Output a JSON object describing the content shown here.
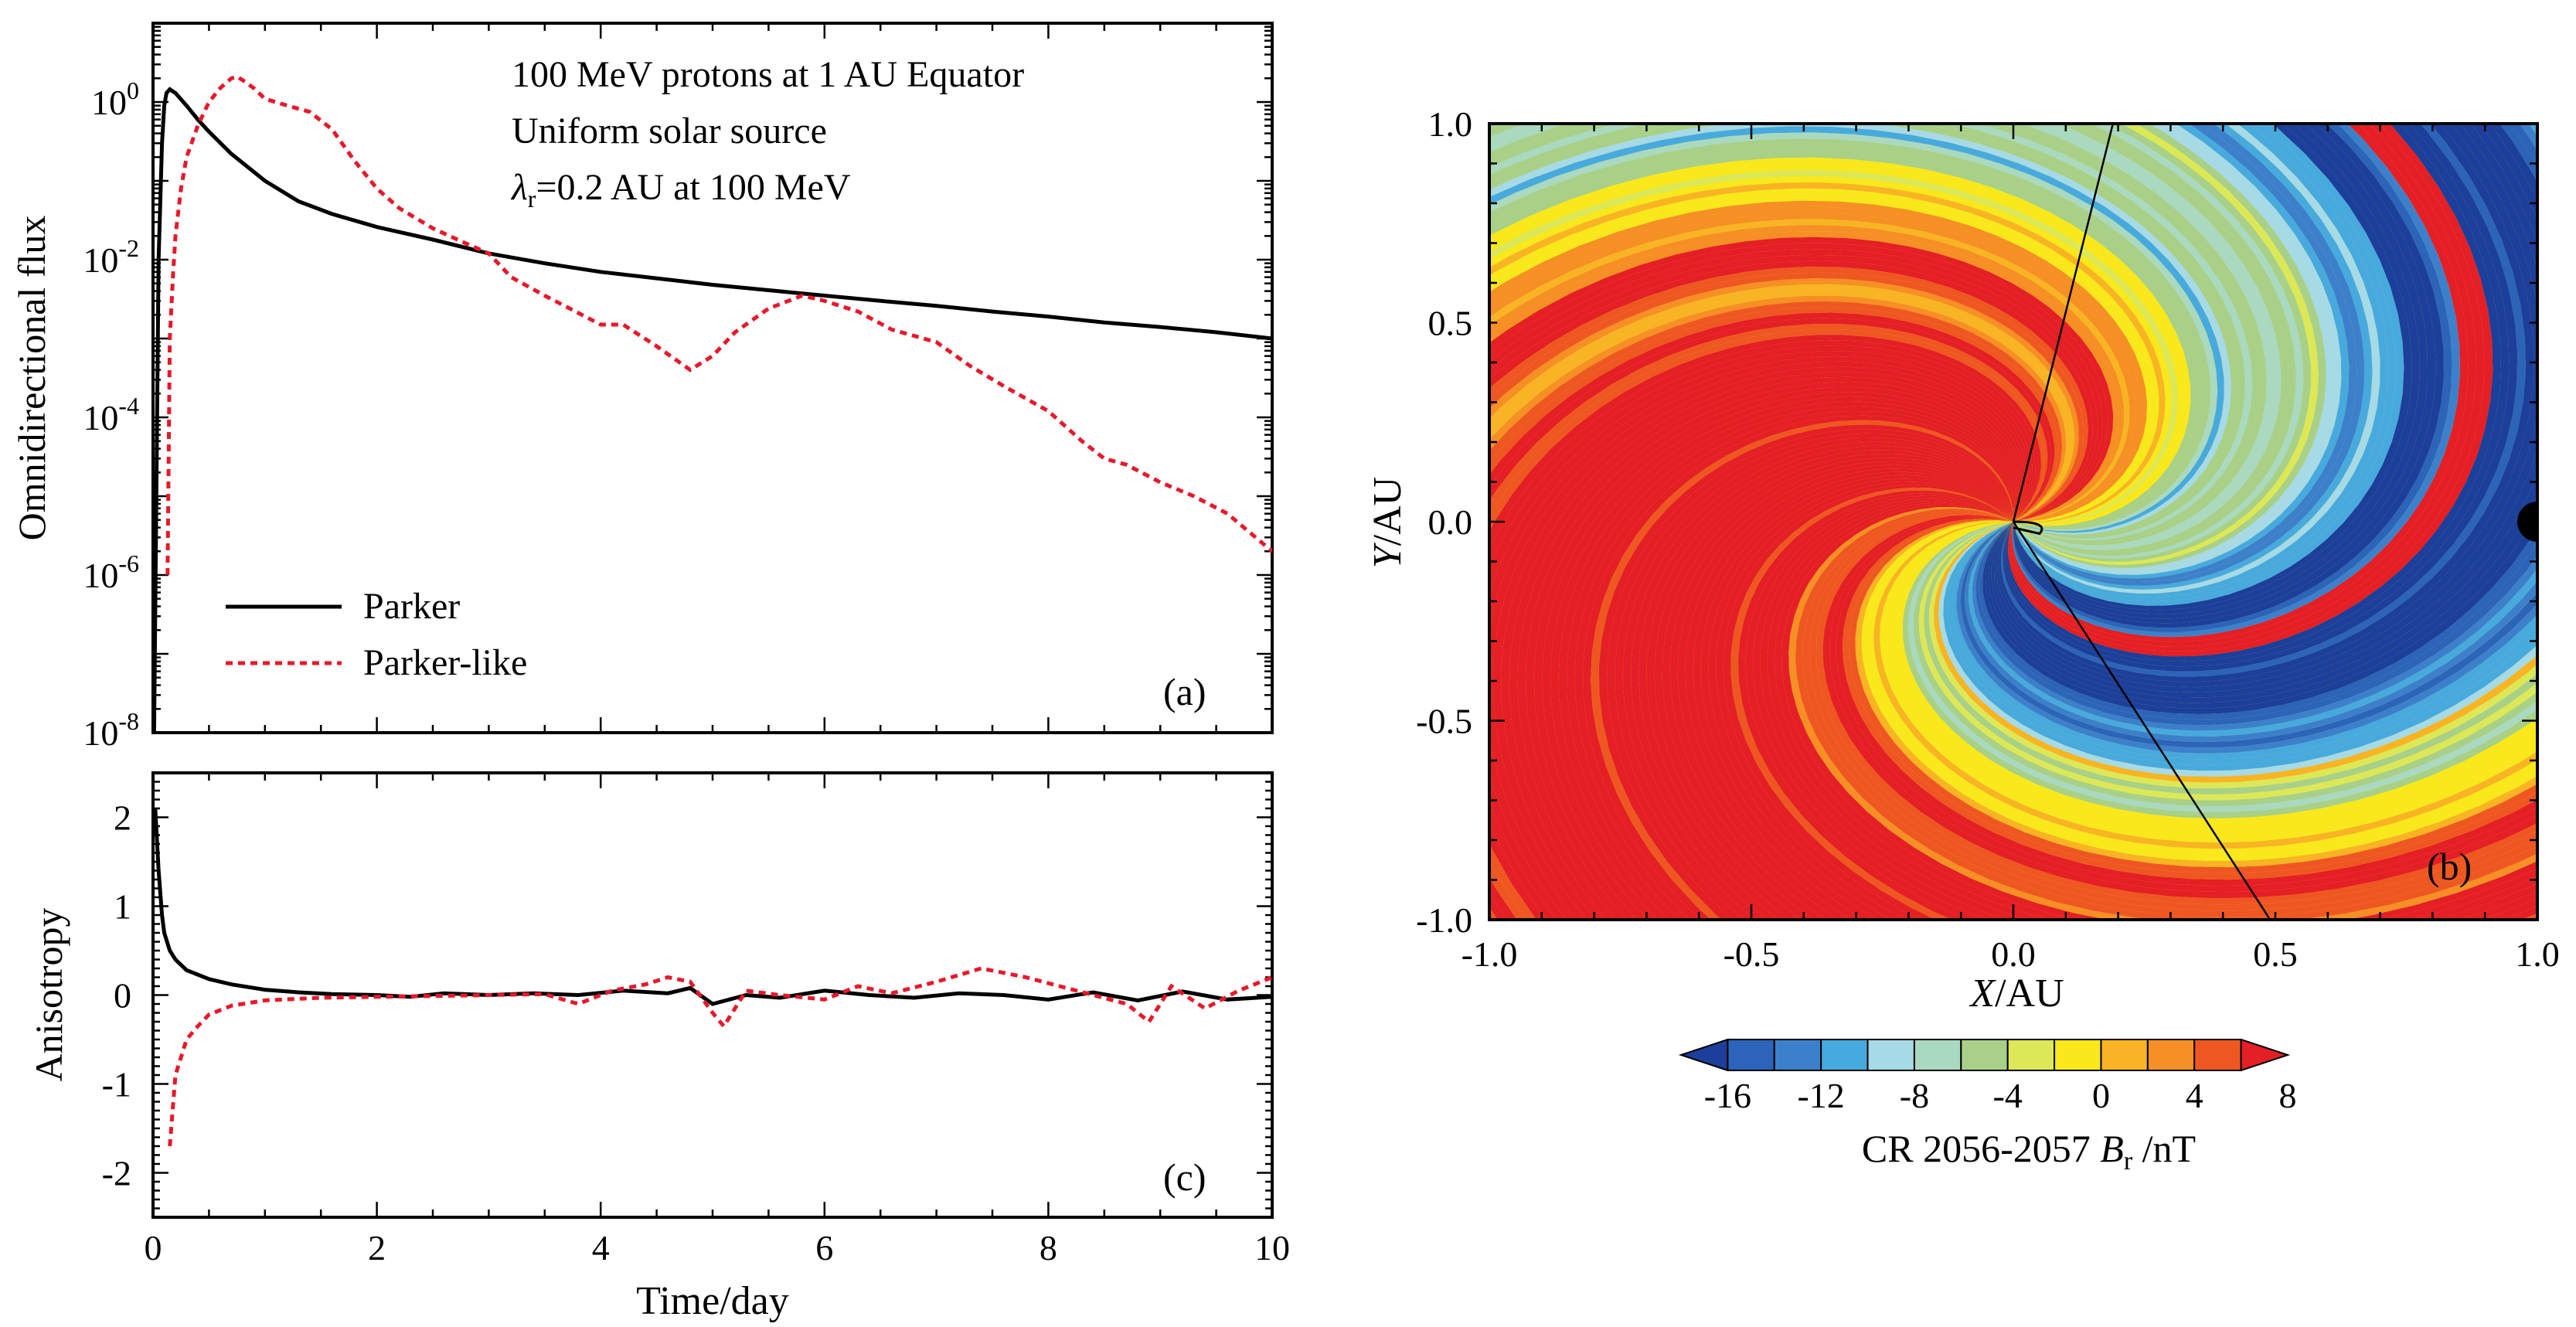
{
  "panel_a": {
    "annotation_lines": [
      "100 MeV protons at 1 AU Equator",
      "Uniform solar source"
    ],
    "lambda_symbol": "λ",
    "lambda_sub": "r",
    "lambda_rest": "=0.2 AU at 100 MeV",
    "ylabel": "Omnidirectional flux",
    "tick_base": "10",
    "label": "(a)"
  },
  "panel_c": {
    "ylabel": "Anisotropy",
    "xlabel": "Time/day",
    "label": "(c)"
  },
  "panel_b": {
    "xlabel_italic": "X",
    "xlabel_rest": "/AU",
    "ylabel_italic": "Y",
    "ylabel_rest": "/AU",
    "label": "(b)",
    "colorbar_prefix": "CR 2056-2057 ",
    "colorbar_italic": "B",
    "colorbar_sub": "r",
    "colorbar_suffix": " /nT"
  },
  "colors": {
    "parker": "#000000",
    "parker_like": "#e8182a",
    "colorbar": [
      "#1b3f9a",
      "#2b64b8",
      "#3c80cc",
      "#47aade",
      "#a6dae6",
      "#a9d9c0",
      "#a8d089",
      "#dce857",
      "#f8e81c",
      "#f8b424",
      "#f68f25",
      "#ef5722",
      "#e41f26"
    ]
  },
  "chart_data": [
    {
      "type": "line",
      "panel": "(a)",
      "title": "100 MeV protons at 1 AU Equator",
      "xlabel": "Time/day",
      "ylabel": "Omnidirectional flux",
      "xlim": [
        0,
        10
      ],
      "ylim": [
        1e-08,
        10
      ],
      "yscale": "log",
      "yticks": [
        1e-08,
        1e-06,
        0.0001,
        0.01,
        1
      ],
      "yticklabels": [
        {
          "base": "10",
          "exp": "-8"
        },
        {
          "base": "10",
          "exp": "-6"
        },
        {
          "base": "10",
          "exp": "-4"
        },
        {
          "base": "10",
          "exp": "-2"
        },
        {
          "base": "10",
          "exp": "0"
        }
      ],
      "legend": "left-center",
      "series": [
        {
          "name": "Parker",
          "color": "#000000",
          "dash": false,
          "x": [
            0.01,
            0.03,
            0.05,
            0.08,
            0.1,
            0.12,
            0.15,
            0.2,
            0.3,
            0.4,
            0.5,
            0.7,
            1.0,
            1.3,
            1.6,
            2.0,
            2.5,
            3.0,
            3.5,
            4.0,
            4.5,
            5.0,
            5.5,
            6.0,
            6.5,
            7.0,
            7.5,
            8.0,
            8.5,
            9.0,
            9.5,
            10.0
          ],
          "y": [
            1e-08,
            1e-05,
            0.01,
            0.3,
            0.9,
            1.3,
            1.45,
            1.3,
            0.9,
            0.6,
            0.42,
            0.22,
            0.1,
            0.055,
            0.038,
            0.026,
            0.018,
            0.012,
            0.009,
            0.007,
            0.0058,
            0.0048,
            0.0041,
            0.0035,
            0.003,
            0.0026,
            0.0022,
            0.0019,
            0.0016,
            0.0014,
            0.0012,
            0.001
          ]
        },
        {
          "name": "Parker-like",
          "color": "#e8182a",
          "dash": true,
          "x": [
            0.13,
            0.15,
            0.18,
            0.2,
            0.25,
            0.3,
            0.4,
            0.5,
            0.6,
            0.7,
            0.75,
            0.8,
            0.9,
            1.0,
            1.2,
            1.4,
            1.6,
            1.8,
            2.0,
            2.2,
            2.5,
            2.8,
            3.0,
            3.2,
            3.5,
            3.7,
            4.0,
            4.2,
            4.5,
            4.8,
            5.0,
            5.2,
            5.5,
            5.8,
            6.0,
            6.3,
            6.6,
            7.0,
            7.3,
            7.6,
            8.0,
            8.3,
            8.5,
            8.7,
            9.0,
            9.3,
            9.6,
            10.0
          ],
          "y": [
            1e-06,
            0.001,
            0.007,
            0.02,
            0.08,
            0.2,
            0.5,
            1.0,
            1.5,
            2.0,
            2.1,
            1.9,
            1.5,
            1.1,
            0.9,
            0.75,
            0.45,
            0.18,
            0.08,
            0.045,
            0.025,
            0.016,
            0.012,
            0.006,
            0.0035,
            0.0025,
            0.0015,
            0.0015,
            0.0008,
            0.0004,
            0.0006,
            0.0012,
            0.0024,
            0.0035,
            0.003,
            0.0022,
            0.0013,
            0.0009,
            0.00045,
            0.00025,
            0.00012,
            5e-05,
            3e-05,
            2.5e-05,
            1.5e-05,
            1e-05,
            6e-06,
            2e-06
          ]
        }
      ]
    },
    {
      "type": "line",
      "panel": "(c)",
      "xlabel": "Time/day",
      "ylabel": "Anisotropy",
      "xlim": [
        0,
        10
      ],
      "ylim": [
        -2.5,
        2.5
      ],
      "xticks": [
        0,
        2,
        4,
        6,
        8,
        10
      ],
      "yticks": [
        -2,
        -1,
        0,
        1,
        2
      ],
      "series": [
        {
          "name": "Parker",
          "color": "#000000",
          "dash": false,
          "x": [
            0.02,
            0.05,
            0.08,
            0.1,
            0.15,
            0.2,
            0.3,
            0.5,
            0.7,
            1.0,
            1.3,
            1.6,
            2.0,
            2.3,
            2.6,
            3.0,
            3.4,
            3.8,
            4.2,
            4.6,
            4.8,
            5.0,
            5.3,
            5.6,
            6.0,
            6.4,
            6.8,
            7.2,
            7.6,
            8.0,
            8.4,
            8.8,
            9.2,
            9.6,
            10.0
          ],
          "y": [
            2.1,
            1.4,
            0.9,
            0.7,
            0.5,
            0.4,
            0.28,
            0.18,
            0.12,
            0.06,
            0.03,
            0.01,
            0.0,
            -0.02,
            0.02,
            0.0,
            0.02,
            0.0,
            0.05,
            0.02,
            0.08,
            -0.1,
            0.0,
            -0.03,
            0.05,
            0.0,
            -0.03,
            0.02,
            0.0,
            -0.05,
            0.03,
            -0.06,
            0.04,
            -0.05,
            -0.02
          ]
        },
        {
          "name": "Parker-like",
          "color": "#e8182a",
          "dash": true,
          "x": [
            0.15,
            0.2,
            0.25,
            0.3,
            0.4,
            0.5,
            0.7,
            1.0,
            1.5,
            2.0,
            2.5,
            3.0,
            3.5,
            3.8,
            4.1,
            4.4,
            4.6,
            4.8,
            5.0,
            5.1,
            5.3,
            5.6,
            6.0,
            6.3,
            6.6,
            7.0,
            7.4,
            7.8,
            8.1,
            8.4,
            8.7,
            8.9,
            9.1,
            9.4,
            9.7,
            10.0
          ],
          "y": [
            -1.7,
            -0.9,
            -0.7,
            -0.5,
            -0.35,
            -0.22,
            -0.12,
            -0.06,
            -0.03,
            -0.02,
            -0.01,
            0.0,
            0.01,
            -0.1,
            0.05,
            0.12,
            0.2,
            0.15,
            -0.2,
            -0.35,
            0.05,
            0.0,
            -0.05,
            0.1,
            0.02,
            0.15,
            0.3,
            0.2,
            0.1,
            0.0,
            -0.1,
            -0.3,
            0.1,
            -0.15,
            0.05,
            0.2
          ]
        }
      ]
    },
    {
      "type": "heatmap",
      "panel": "(b)",
      "xlabel": "X/AU",
      "ylabel": "Y/AU",
      "xlim": [
        -1.0,
        1.0
      ],
      "ylim": [
        -1.0,
        1.0
      ],
      "xticklabels": [
        "-1.0",
        "-0.5",
        "0.0",
        "0.5",
        "1.0"
      ],
      "yticklabels": [
        "1.0",
        "0.5",
        "0.0",
        "-0.5",
        "-1.0"
      ],
      "colorbar_label": "CR 2056-2057 Br /nT",
      "colorbar_ticks": [
        -16,
        -12,
        -8,
        -4,
        0,
        4,
        8
      ],
      "colorbar_range": [
        -18,
        8
      ],
      "features": {
        "field_line_endpoints": [
          [
            0.19,
            1.0
          ],
          [
            0.49,
            -1.0
          ]
        ],
        "earth_marker": [
          1.0,
          0.0
        ]
      }
    }
  ]
}
